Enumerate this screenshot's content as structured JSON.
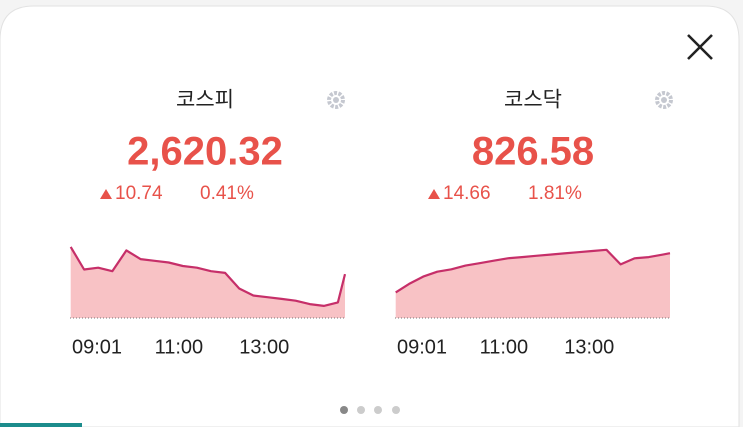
{
  "panels": [
    {
      "name": "코스피",
      "value": "2,620.32",
      "change": "10.74",
      "percent": "0.41%"
    },
    {
      "name": "코스닥",
      "value": "826.58",
      "change": "14.66",
      "percent": "1.81%"
    }
  ],
  "chart_data": [
    {
      "type": "line",
      "color": "#c62f69",
      "fill": "#f8c2c5",
      "x": [
        "09:01",
        "09:20",
        "09:40",
        "10:00",
        "10:20",
        "10:40",
        "11:00",
        "11:20",
        "11:40",
        "12:00",
        "12:20",
        "12:40",
        "13:00",
        "13:20",
        "13:40",
        "14:00",
        "14:20",
        "14:40",
        "15:00",
        "15:20",
        "15:30"
      ],
      "values": [
        2636,
        2623,
        2624,
        2622,
        2634,
        2629,
        2628,
        2627,
        2625,
        2624,
        2622,
        2621,
        2612,
        2608,
        2607,
        2606,
        2605,
        2603,
        2602,
        2604,
        2620.32
      ],
      "xlim": [
        "09:00",
        "15:30"
      ],
      "xticks": [
        "09:01",
        "11:00",
        "13:00"
      ],
      "ylim": [
        2595,
        2640
      ]
    },
    {
      "type": "line",
      "color": "#c62f69",
      "fill": "#f8c2c5",
      "x": [
        "09:01",
        "09:20",
        "09:40",
        "10:00",
        "10:20",
        "10:40",
        "11:00",
        "11:20",
        "11:40",
        "12:00",
        "12:20",
        "12:40",
        "13:00",
        "13:20",
        "13:40",
        "14:00",
        "14:20",
        "14:40",
        "15:00",
        "15:20",
        "15:30"
      ],
      "values": [
        810.5,
        814,
        817,
        819,
        820,
        821.5,
        822.5,
        823.5,
        824.5,
        825,
        825.5,
        826,
        826.5,
        827,
        827.5,
        828,
        822,
        824.5,
        825,
        826,
        826.58
      ],
      "xlim": [
        "09:00",
        "15:30"
      ],
      "xticks": [
        "09:01",
        "11:00",
        "13:00"
      ],
      "ylim": [
        800,
        832
      ]
    }
  ]
}
